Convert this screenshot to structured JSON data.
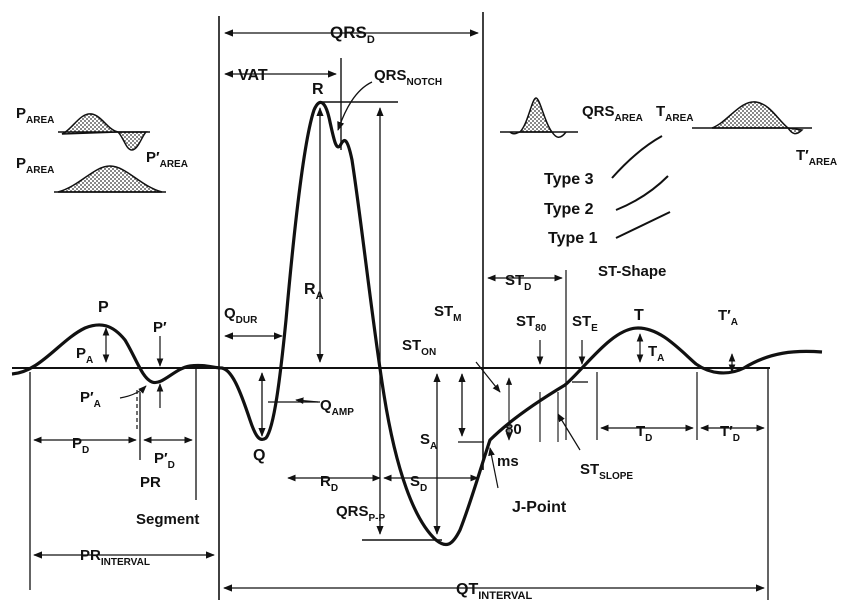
{
  "labels": {
    "qrs_d": [
      "QRS",
      "D"
    ],
    "vat": [
      "VAT",
      ""
    ],
    "qrs_notch": [
      "QRS",
      "NOTCH"
    ],
    "r": [
      "R",
      ""
    ],
    "p_area_1": [
      "P",
      "AREA"
    ],
    "p_area_2": [
      "P",
      "AREA"
    ],
    "p_prime_area": [
      "P′",
      "AREA"
    ],
    "qrs_area": [
      "QRS",
      "AREA"
    ],
    "t_area": [
      "T",
      "AREA"
    ],
    "t_prime_area": [
      "T′",
      "AREA"
    ],
    "type3": [
      "Type 3",
      ""
    ],
    "type2": [
      "Type 2",
      ""
    ],
    "type1": [
      "Type 1",
      ""
    ],
    "st_shape": [
      "ST-Shape",
      ""
    ],
    "st_d": [
      "ST",
      "D"
    ],
    "st_m": [
      "ST",
      "M"
    ],
    "st_80": [
      "ST",
      "80"
    ],
    "st_e": [
      "ST",
      "E"
    ],
    "st_on": [
      "ST",
      "ON"
    ],
    "t": [
      "T",
      ""
    ],
    "t_a_prime": [
      "T′",
      "A"
    ],
    "t_a": [
      "T",
      "A"
    ],
    "p": [
      "P",
      ""
    ],
    "p_prime": [
      "P′",
      ""
    ],
    "p_a": [
      "P",
      "A"
    ],
    "p_a_prime": [
      "P′",
      "A"
    ],
    "q_dur": [
      "Q",
      "DUR"
    ],
    "r_a": [
      "R",
      "A"
    ],
    "q_amp": [
      "Q",
      "AMP"
    ],
    "q": [
      "Q",
      ""
    ],
    "p_d": [
      "P",
      "D"
    ],
    "p_d_prime": [
      "P′",
      "D"
    ],
    "pr": [
      "PR",
      ""
    ],
    "segment": [
      "Segment",
      ""
    ],
    "r_d": [
      "R",
      "D"
    ],
    "s_a": [
      "S",
      "A"
    ],
    "s_d": [
      "S",
      "D"
    ],
    "qrs_pp": [
      "QRS",
      "P-P"
    ],
    "eighty": [
      "80",
      ""
    ],
    "ms": [
      "ms",
      ""
    ],
    "j_point": [
      "J-Point",
      ""
    ],
    "st_slope": [
      "ST",
      "SLOPE"
    ],
    "t_d": [
      "T",
      "D"
    ],
    "t_d_prime": [
      "T′",
      "D"
    ],
    "pr_interval": [
      "PR",
      "INTERVAL"
    ],
    "qt_interval": [
      "QT",
      "INTERVAL"
    ]
  }
}
